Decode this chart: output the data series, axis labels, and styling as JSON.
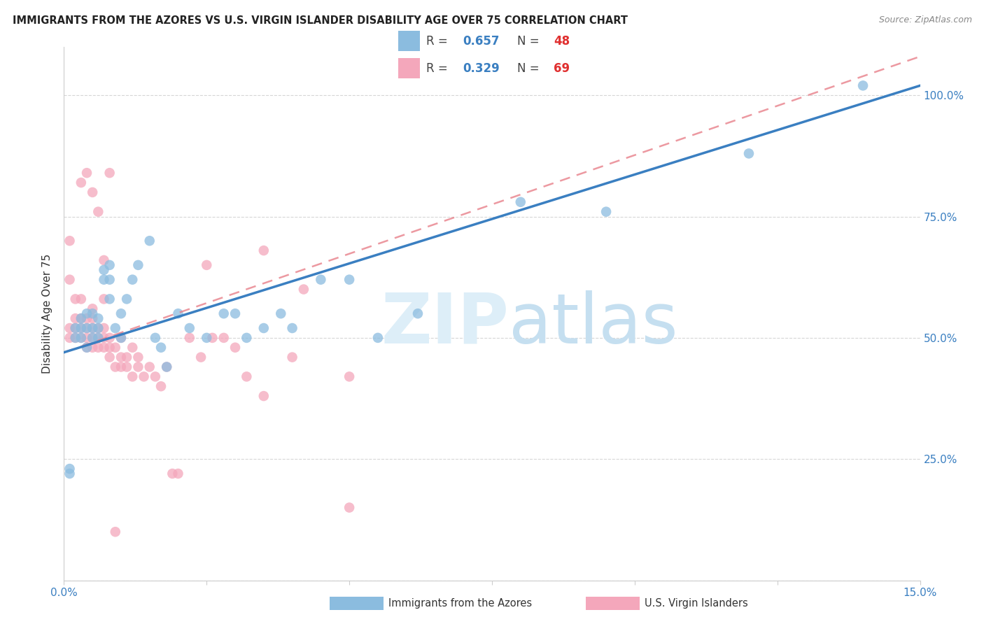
{
  "title": "IMMIGRANTS FROM THE AZORES VS U.S. VIRGIN ISLANDER DISABILITY AGE OVER 75 CORRELATION CHART",
  "source": "Source: ZipAtlas.com",
  "ylabel": "Disability Age Over 75",
  "xlim": [
    0.0,
    0.15
  ],
  "ylim": [
    0.0,
    1.1
  ],
  "yticks": [
    0.0,
    0.25,
    0.5,
    0.75,
    1.0
  ],
  "ytick_labels": [
    "",
    "25.0%",
    "50.0%",
    "75.0%",
    "100.0%"
  ],
  "xticks": [
    0.0,
    0.025,
    0.05,
    0.075,
    0.1,
    0.125,
    0.15
  ],
  "xtick_labels": [
    "0.0%",
    "",
    "",
    "",
    "",
    "",
    "15.0%"
  ],
  "blue_R": 0.657,
  "blue_N": 48,
  "pink_R": 0.329,
  "pink_N": 69,
  "blue_color": "#8BBCDF",
  "pink_color": "#F4A7BB",
  "blue_line_color": "#3A7FC1",
  "pink_line_color": "#E8808A",
  "blue_line_x0": 0.0,
  "blue_line_y0": 0.47,
  "blue_line_x1": 0.15,
  "blue_line_y1": 1.02,
  "pink_line_x0": 0.0,
  "pink_line_y0": 0.47,
  "pink_line_x1": 0.15,
  "pink_line_y1": 1.08,
  "blue_scatter_x": [
    0.001,
    0.001,
    0.002,
    0.002,
    0.003,
    0.003,
    0.003,
    0.004,
    0.004,
    0.004,
    0.005,
    0.005,
    0.005,
    0.006,
    0.006,
    0.006,
    0.007,
    0.007,
    0.008,
    0.008,
    0.008,
    0.009,
    0.01,
    0.01,
    0.011,
    0.012,
    0.013,
    0.015,
    0.016,
    0.017,
    0.018,
    0.02,
    0.022,
    0.025,
    0.028,
    0.03,
    0.032,
    0.035,
    0.038,
    0.04,
    0.045,
    0.05,
    0.055,
    0.062,
    0.08,
    0.095,
    0.12,
    0.14
  ],
  "blue_scatter_y": [
    0.22,
    0.23,
    0.5,
    0.52,
    0.5,
    0.52,
    0.54,
    0.48,
    0.52,
    0.55,
    0.5,
    0.52,
    0.55,
    0.5,
    0.52,
    0.54,
    0.62,
    0.64,
    0.58,
    0.62,
    0.65,
    0.52,
    0.55,
    0.5,
    0.58,
    0.62,
    0.65,
    0.7,
    0.5,
    0.48,
    0.44,
    0.55,
    0.52,
    0.5,
    0.55,
    0.55,
    0.5,
    0.52,
    0.55,
    0.52,
    0.62,
    0.62,
    0.5,
    0.55,
    0.78,
    0.76,
    0.88,
    1.02
  ],
  "pink_scatter_x": [
    0.001,
    0.001,
    0.001,
    0.001,
    0.002,
    0.002,
    0.002,
    0.002,
    0.003,
    0.003,
    0.003,
    0.003,
    0.004,
    0.004,
    0.004,
    0.004,
    0.005,
    0.005,
    0.005,
    0.005,
    0.005,
    0.006,
    0.006,
    0.006,
    0.007,
    0.007,
    0.007,
    0.007,
    0.008,
    0.008,
    0.008,
    0.009,
    0.009,
    0.01,
    0.01,
    0.01,
    0.011,
    0.011,
    0.012,
    0.012,
    0.013,
    0.013,
    0.014,
    0.015,
    0.016,
    0.017,
    0.018,
    0.019,
    0.02,
    0.022,
    0.024,
    0.025,
    0.026,
    0.028,
    0.03,
    0.032,
    0.035,
    0.04,
    0.042,
    0.05,
    0.003,
    0.004,
    0.005,
    0.006,
    0.007,
    0.008,
    0.009,
    0.035,
    0.05
  ],
  "pink_scatter_y": [
    0.62,
    0.7,
    0.52,
    0.5,
    0.5,
    0.52,
    0.54,
    0.58,
    0.5,
    0.52,
    0.54,
    0.58,
    0.48,
    0.5,
    0.52,
    0.54,
    0.48,
    0.5,
    0.52,
    0.54,
    0.56,
    0.48,
    0.5,
    0.52,
    0.48,
    0.5,
    0.52,
    0.58,
    0.46,
    0.48,
    0.5,
    0.44,
    0.48,
    0.44,
    0.46,
    0.5,
    0.44,
    0.46,
    0.48,
    0.42,
    0.44,
    0.46,
    0.42,
    0.44,
    0.42,
    0.4,
    0.44,
    0.22,
    0.22,
    0.5,
    0.46,
    0.65,
    0.5,
    0.5,
    0.48,
    0.42,
    0.38,
    0.46,
    0.6,
    0.42,
    0.82,
    0.84,
    0.8,
    0.76,
    0.66,
    0.84,
    0.1,
    0.68,
    0.15
  ]
}
